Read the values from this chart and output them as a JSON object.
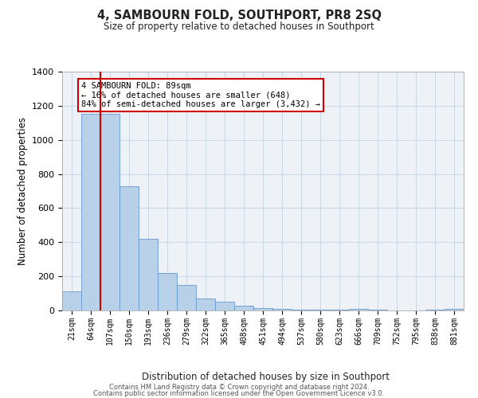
{
  "title": "4, SAMBOURN FOLD, SOUTHPORT, PR8 2SQ",
  "subtitle": "Size of property relative to detached houses in Southport",
  "xlabel": "Distribution of detached houses by size in Southport",
  "ylabel": "Number of detached properties",
  "categories": [
    "21sqm",
    "64sqm",
    "107sqm",
    "150sqm",
    "193sqm",
    "236sqm",
    "279sqm",
    "322sqm",
    "365sqm",
    "408sqm",
    "451sqm",
    "494sqm",
    "537sqm",
    "580sqm",
    "623sqm",
    "666sqm",
    "709sqm",
    "752sqm",
    "795sqm",
    "838sqm",
    "881sqm"
  ],
  "bar_heights": [
    110,
    1155,
    1155,
    730,
    420,
    220,
    150,
    70,
    50,
    30,
    15,
    10,
    5,
    5,
    5,
    10,
    5,
    0,
    0,
    5,
    10
  ],
  "bar_color": "#b8d0e8",
  "bar_edge_color": "#6699cc",
  "vline_color": "#cc0000",
  "annotation_title": "4 SAMBOURN FOLD: 89sqm",
  "annotation_line1": "← 16% of detached houses are smaller (648)",
  "annotation_line2": "84% of semi-detached houses are larger (3,432) →",
  "annotation_box_color": "#cc0000",
  "annotation_bg": "#ffffff",
  "ylim": [
    0,
    1400
  ],
  "yticks": [
    0,
    200,
    400,
    600,
    800,
    1000,
    1200,
    1400
  ],
  "grid_color": "#c8d8e8",
  "bg_color": "#eef2f7",
  "footer1": "Contains HM Land Registry data © Crown copyright and database right 2024.",
  "footer2": "Contains public sector information licensed under the Open Government Licence v3.0."
}
